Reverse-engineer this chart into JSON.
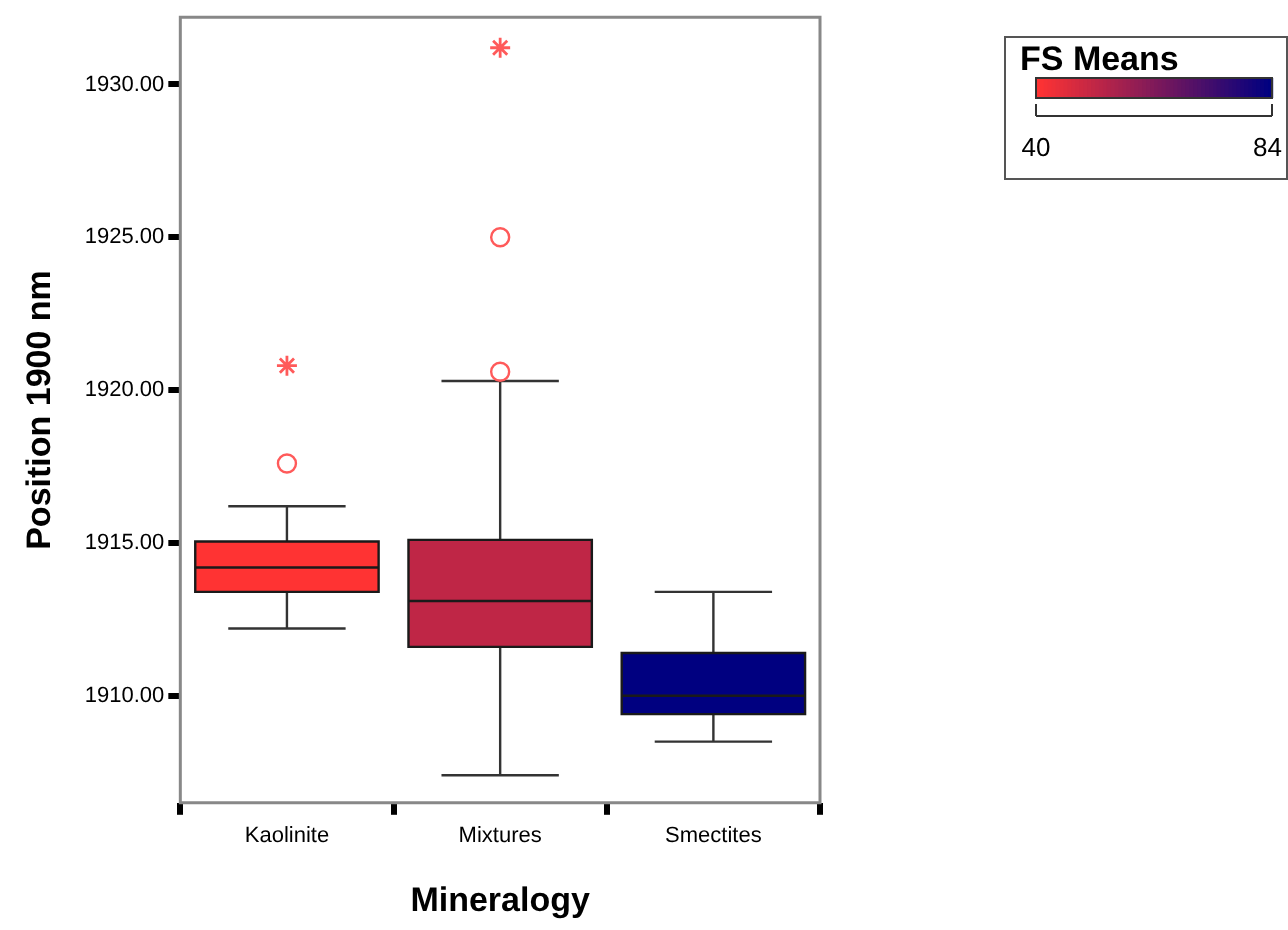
{
  "chart_data": {
    "type": "box",
    "xlabel": "Mineralogy",
    "ylabel": "Position 1900 nm",
    "clabel": "FS Means",
    "categories": [
      "Kaolinite",
      "Mixtures",
      "Smectites"
    ],
    "boxes": [
      {
        "low": 1912.2,
        "q1": 1913.4,
        "median": 1914.2,
        "q3": 1915.05,
        "high": 1916.2,
        "outliers": [
          1917.6
        ]
      },
      {
        "low": 1907.4,
        "q1": 1911.6,
        "median": 1913.1,
        "q3": 1915.1,
        "high": 1920.3,
        "outliers": [
          1920.6,
          1925.0
        ]
      },
      {
        "low": 1908.5,
        "q1": 1909.4,
        "median": 1910.0,
        "q3": 1911.4,
        "high": 1913.4
      }
    ],
    "colors": [
      "#ff3333",
      "#bf2646",
      "#000080"
    ],
    "cvalues": [
      40,
      51,
      84
    ],
    "clim": [
      40,
      84
    ],
    "cticks": [
      40,
      84
    ],
    "series": [
      {
        "type": "scatter",
        "marker": "cross",
        "color": "#ff5a5a",
        "x": [
          "Kaolinite",
          "Mixtures"
        ],
        "values": [
          1920.8,
          1931.2
        ]
      }
    ],
    "ylim": [
      1906.5,
      1932.2
    ],
    "yticks": [
      {
        "value": 1910,
        "label": "1910.00"
      },
      {
        "value": 1915,
        "label": "1915.00"
      },
      {
        "value": 1920,
        "label": "1920.00"
      },
      {
        "value": 1925,
        "label": "1925.00"
      },
      {
        "value": 1930,
        "label": "1930.00"
      }
    ]
  }
}
